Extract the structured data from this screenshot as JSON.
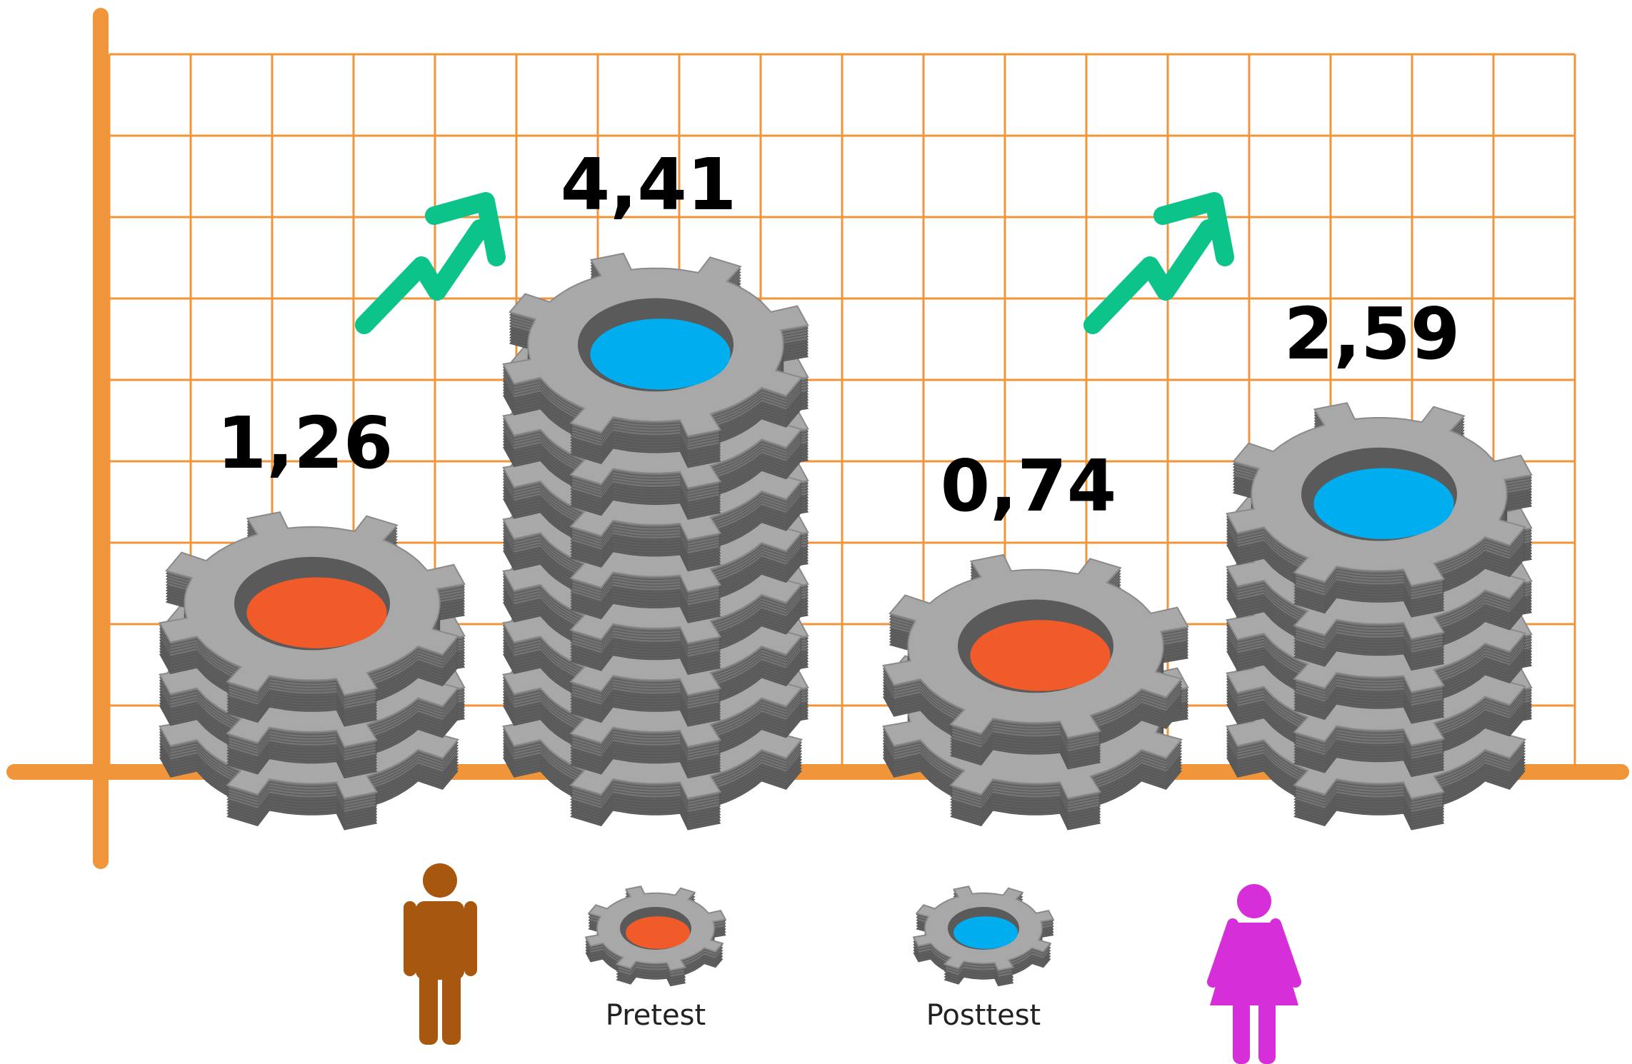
{
  "chart_data": {
    "type": "gear-stack",
    "categories": [
      null,
      null
    ],
    "series": [
      {
        "name": "Pretest",
        "color": "#f15a29",
        "values": [
          1.26,
          0.74
        ],
        "value_labels": [
          "1,26",
          "0,74"
        ]
      },
      {
        "name": "Posttest",
        "color": "#00aeef",
        "values": [
          4.41,
          2.59
        ],
        "value_labels": [
          "4,41",
          "2,59"
        ]
      }
    ],
    "grid": true
  }
}
